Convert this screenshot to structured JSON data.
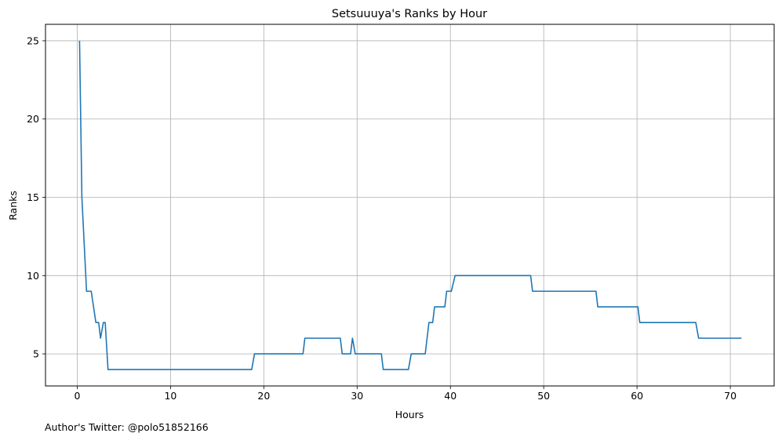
{
  "footer": {
    "note": "Author's Twitter: @polo51852166"
  },
  "chart_data": {
    "type": "line",
    "title": "Setsuuuya's Ranks by Hour",
    "xlabel": "Hours",
    "ylabel": "Ranks",
    "xlim": [
      -3.4,
      74.7
    ],
    "ylim": [
      2.95,
      26.05
    ],
    "xticks": [
      0,
      10,
      20,
      30,
      40,
      50,
      60,
      70
    ],
    "yticks": [
      5,
      10,
      15,
      20,
      25
    ],
    "grid": true,
    "line_color": "#1f77b4",
    "series": [
      {
        "x": [
          0.25,
          0.5,
          1.0,
          1.5,
          2.0,
          2.3,
          2.5,
          2.8,
          3.0,
          3.3,
          18.7,
          19.0,
          24.2,
          24.4,
          28.2,
          28.4,
          29.3,
          29.5,
          29.8,
          32.6,
          32.8,
          35.5,
          35.8,
          37.3,
          37.7,
          38.1,
          38.3,
          39.4,
          39.6,
          40.1,
          40.5,
          48.6,
          48.8,
          55.6,
          55.8,
          60.1,
          60.3,
          66.3,
          66.6,
          71.2
        ],
        "y": [
          25,
          15,
          9,
          9,
          7,
          7,
          6,
          7,
          7,
          4,
          4,
          5,
          5,
          6,
          6,
          5,
          5,
          6,
          5,
          5,
          4,
          4,
          5,
          5,
          7,
          7,
          8,
          8,
          9,
          9,
          10,
          10,
          9,
          9,
          8,
          8,
          7,
          7,
          6,
          6
        ]
      }
    ]
  }
}
